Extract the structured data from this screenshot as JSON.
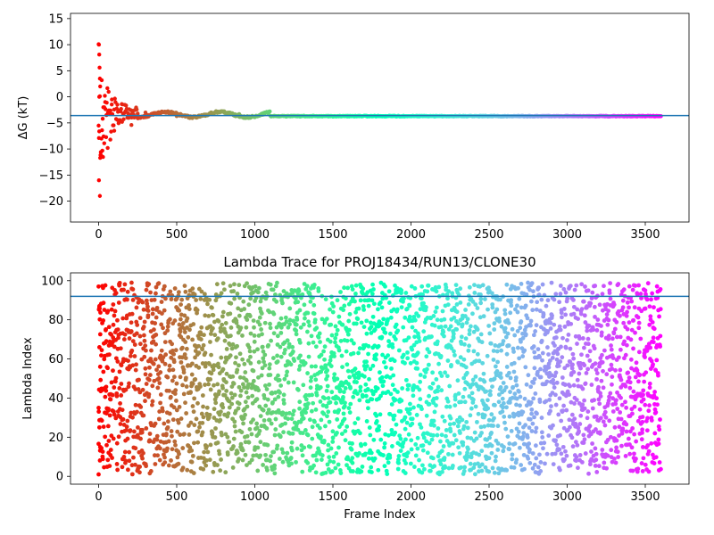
{
  "colormap": "rainbow",
  "chart_data": [
    {
      "type": "scatter",
      "title": "",
      "xlabel": "",
      "ylabel": "ΔG (kT)",
      "xlim": [
        -180,
        3780
      ],
      "ylim": [
        -24,
        16
      ],
      "xticks": [
        "0",
        "500",
        "1000",
        "1500",
        "2000",
        "2500",
        "3000",
        "3500"
      ],
      "yticks": [
        "15",
        "10",
        "5",
        "0",
        "−5",
        "−10",
        "−15",
        "−20"
      ],
      "x_range": [
        0,
        3600
      ],
      "n_points": 3600,
      "hline": {
        "y": -3.6,
        "color": "#1f77b4"
      },
      "point_color": "rainbow colormap from red (frame 0) to violet (frame 3600)",
      "series": [
        {
          "description": "Running free energy estimate; large scatter near frame 0 settling to about -3.6 kT",
          "early_points": [
            {
              "x": 0,
              "y": 10.1
            },
            {
              "x": 2,
              "y": 10.0
            },
            {
              "x": 4,
              "y": 8.1
            },
            {
              "x": 6,
              "y": 5.6
            },
            {
              "x": 8,
              "y": 3.5
            },
            {
              "x": 10,
              "y": 2.0
            },
            {
              "x": 4,
              "y": 0.0
            },
            {
              "x": 2,
              "y": -7.9
            },
            {
              "x": 2,
              "y": -16.0
            },
            {
              "x": 8,
              "y": -19.0
            },
            {
              "x": 10,
              "y": -11.7
            },
            {
              "x": 14,
              "y": -10.6
            },
            {
              "x": 18,
              "y": -8.0
            },
            {
              "x": 22,
              "y": -6.4
            },
            {
              "x": 26,
              "y": -4.2
            },
            {
              "x": 30,
              "y": -2.0
            },
            {
              "x": 36,
              "y": -8.9
            },
            {
              "x": 42,
              "y": -1.0
            },
            {
              "x": 50,
              "y": -3.5
            },
            {
              "x": 58,
              "y": -9.8
            },
            {
              "x": 66,
              "y": -2.6
            },
            {
              "x": 75,
              "y": -8.2
            },
            {
              "x": 85,
              "y": -0.5
            },
            {
              "x": 100,
              "y": -6.5
            },
            {
              "x": 120,
              "y": -1.5
            },
            {
              "x": 150,
              "y": -4.8
            },
            {
              "x": 180,
              "y": -2.3
            },
            {
              "x": 210,
              "y": -5.4
            },
            {
              "x": 250,
              "y": -3.2
            },
            {
              "x": 300,
              "y": -3.0
            },
            {
              "x": 400,
              "y": -3.0
            },
            {
              "x": 500,
              "y": -3.7
            },
            {
              "x": 700,
              "y": -3.5
            },
            {
              "x": 900,
              "y": -3.3
            },
            {
              "x": 1200,
              "y": -3.8
            },
            {
              "x": 1500,
              "y": -3.8
            },
            {
              "x": 2000,
              "y": -3.7
            },
            {
              "x": 2500,
              "y": -3.7
            },
            {
              "x": 3000,
              "y": -3.7
            },
            {
              "x": 3600,
              "y": -3.7
            }
          ]
        }
      ]
    },
    {
      "type": "scatter",
      "title": "Lambda Trace for PROJ18434/RUN13/CLONE30",
      "xlabel": "Frame Index",
      "ylabel": "Lambda Index",
      "xlim": [
        -180,
        3780
      ],
      "ylim": [
        -4,
        104
      ],
      "xticks": [
        "0",
        "500",
        "1000",
        "1500",
        "2000",
        "2500",
        "3000",
        "3500"
      ],
      "yticks": [
        "100",
        "80",
        "60",
        "40",
        "20",
        "0"
      ],
      "x_range": [
        0,
        3600
      ],
      "y_range": [
        1,
        99
      ],
      "n_points": 3600,
      "hline": {
        "y": 92,
        "color": "#1f77b4"
      },
      "point_color": "rainbow colormap from red (frame 0) to violet (frame 3600)",
      "series": [
        {
          "description": "Lambda index per frame, values scattered roughly uniformly between 1 and 99",
          "sample_points": [
            {
              "x": 0,
              "y": 97
            },
            {
              "x": 0,
              "y": 35
            },
            {
              "x": 0,
              "y": 1
            },
            {
              "x": 5,
              "y": 87
            },
            {
              "x": 5,
              "y": 66
            },
            {
              "x": 5,
              "y": 25
            },
            {
              "x": 10,
              "y": 56
            },
            {
              "x": 10,
              "y": 15
            }
          ]
        }
      ]
    }
  ]
}
